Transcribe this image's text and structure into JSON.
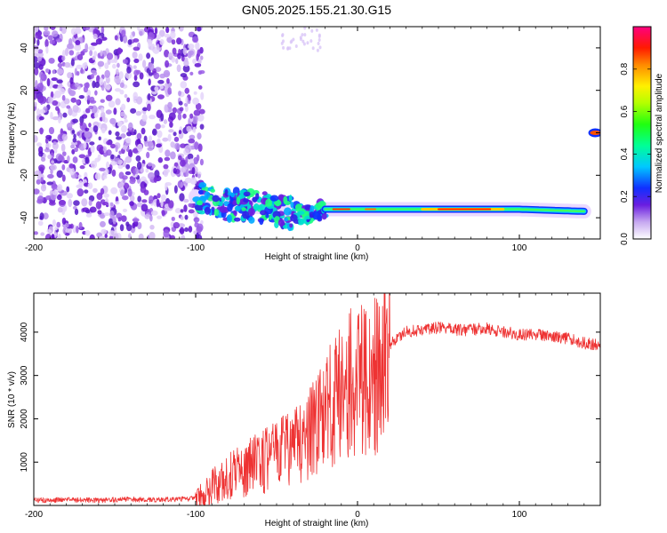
{
  "title": "GN05.2025.155.21.30.G15",
  "chart_data": [
    {
      "type": "heatmap",
      "xlabel": "Height of straight line (km)",
      "ylabel": "Frequency (Hz)",
      "xlim": [
        -200,
        150
      ],
      "ylim": [
        -50,
        50
      ],
      "xticks": [
        -200,
        -100,
        0,
        100
      ],
      "xtick_labels": [
        "-200",
        "-100",
        "0",
        "100"
      ],
      "yticks": [
        -40,
        -20,
        0,
        20,
        40
      ],
      "ytick_labels": [
        "-40",
        "-20",
        "0",
        "20",
        "40"
      ],
      "colorbar": {
        "label": "Normalized spectral amplitude",
        "range": [
          0,
          1
        ],
        "ticks": [
          0,
          0.2,
          0.4,
          0.6,
          0.8
        ],
        "tick_labels": [
          "0.0",
          "0.2",
          "0.4",
          "0.6",
          "0.8"
        ]
      },
      "features": {
        "noise_region_x": [
          -200,
          -100
        ],
        "signal_track": [
          {
            "x": -100,
            "y": -30
          },
          {
            "x": -80,
            "y": -34
          },
          {
            "x": -60,
            "y": -35
          },
          {
            "x": -40,
            "y": -38
          },
          {
            "x": -30,
            "y": -38
          },
          {
            "x": -20,
            "y": -36
          },
          {
            "x": 0,
            "y": -36
          },
          {
            "x": 50,
            "y": -36
          },
          {
            "x": 100,
            "y": -36
          },
          {
            "x": 140,
            "y": -37
          }
        ],
        "strong_segment_x": [
          -20,
          140
        ],
        "peak_segment_x": [
          40,
          90
        ],
        "isolated_spot": {
          "x": 147,
          "y": 0
        }
      }
    },
    {
      "type": "line",
      "xlabel": "Height of straight line (km)",
      "ylabel": "SNR (10 * v/v)",
      "xlim": [
        -200,
        150
      ],
      "ylim": [
        0,
        4900
      ],
      "xticks": [
        -200,
        -100,
        0,
        100
      ],
      "xtick_labels": [
        "-200",
        "-100",
        "0",
        "100"
      ],
      "yticks": [
        1000,
        2000,
        3000,
        4000
      ],
      "ytick_labels": [
        "1000",
        "2000",
        "3000",
        "4000"
      ],
      "color": "#ee3333",
      "series": [
        {
          "x": [
            -200,
            -180,
            -160,
            -140,
            -120,
            -100,
            -95,
            -90,
            -85,
            -80,
            -75,
            -70,
            -65,
            -60,
            -55,
            -50,
            -45,
            -40,
            -35,
            -30,
            -25,
            -20,
            -15,
            -10,
            -5,
            0,
            5,
            10,
            15,
            20,
            25,
            30,
            40,
            50,
            60,
            70,
            80,
            90,
            100,
            110,
            120,
            130,
            140,
            150
          ],
          "values": [
            120,
            130,
            120,
            140,
            130,
            160,
            250,
            400,
            550,
            700,
            800,
            850,
            900,
            1000,
            1050,
            1150,
            1250,
            1350,
            1450,
            1600,
            1800,
            2100,
            2400,
            2600,
            2800,
            2900,
            2850,
            2900,
            3400,
            3700,
            3900,
            4000,
            4050,
            4100,
            4050,
            4050,
            4100,
            4000,
            3950,
            3950,
            3900,
            3850,
            3750,
            3700
          ]
        }
      ]
    }
  ]
}
